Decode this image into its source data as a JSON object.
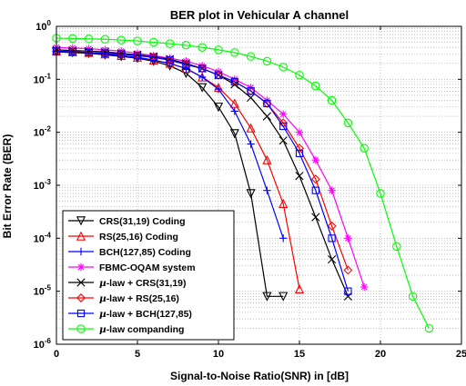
{
  "chart_data": {
    "type": "line",
    "title": "BER plot in Vehicular A channel",
    "xlabel": "Signal-to-Noise Ratio(SNR) in [dB]",
    "ylabel": "Bit Error Rate (BER)",
    "xlim": [
      0,
      25
    ],
    "ylim": [
      1e-06,
      1
    ],
    "yscale": "log",
    "grid": true,
    "legend_position": "lower-left",
    "x_ticks": [
      0,
      5,
      10,
      15,
      20,
      25
    ],
    "x_tick_labels": [
      "0",
      "5",
      "10",
      "15",
      "20",
      "25"
    ],
    "y_tick_exponents": [
      "0",
      "-1",
      "-2",
      "-3",
      "-4",
      "-5",
      "-6"
    ],
    "y_tick_base": "10",
    "series": [
      {
        "name": "CRS(31,19) Coding",
        "color": "#000000",
        "marker": "triangle-down",
        "x": [
          0,
          1,
          2,
          3,
          4,
          5,
          6,
          7,
          8,
          9,
          10,
          11,
          12,
          13,
          14
        ],
        "y": [
          0.33,
          0.32,
          0.31,
          0.29,
          0.27,
          0.25,
          0.22,
          0.18,
          0.13,
          0.07,
          0.03,
          0.0095,
          0.0007,
          8e-06,
          8e-06
        ]
      },
      {
        "name": "RS(25,16) Coding",
        "color": "#ff0000",
        "marker": "triangle-up",
        "x": [
          0,
          1,
          2,
          3,
          4,
          5,
          6,
          7,
          8,
          9,
          10,
          11,
          12,
          13,
          14,
          15
        ],
        "y": [
          0.34,
          0.33,
          0.32,
          0.3,
          0.28,
          0.26,
          0.23,
          0.2,
          0.16,
          0.11,
          0.07,
          0.035,
          0.012,
          0.003,
          0.00045,
          1.1e-05
        ]
      },
      {
        "name": "BCH(127,85) Coding",
        "color": "#0000ff",
        "marker": "plus",
        "x": [
          0,
          1,
          2,
          3,
          4,
          5,
          6,
          7,
          8,
          9,
          10,
          11,
          12,
          13,
          14
        ],
        "y": [
          0.34,
          0.33,
          0.32,
          0.3,
          0.28,
          0.26,
          0.23,
          0.2,
          0.16,
          0.11,
          0.065,
          0.025,
          0.006,
          0.0008,
          0.0001
        ]
      },
      {
        "name": "FBMC-OQAM system",
        "color": "#ff00ff",
        "marker": "asterisk",
        "x": [
          0,
          1,
          2,
          3,
          4,
          5,
          6,
          7,
          8,
          9,
          10,
          11,
          12,
          13,
          14,
          15,
          16,
          17,
          18,
          19
        ],
        "y": [
          0.4,
          0.39,
          0.38,
          0.36,
          0.34,
          0.31,
          0.28,
          0.25,
          0.22,
          0.18,
          0.14,
          0.1,
          0.07,
          0.04,
          0.022,
          0.01,
          0.003,
          0.0008,
          0.0001,
          1.2e-05
        ]
      },
      {
        "name": "µ-law + CRS(31,19)",
        "color": "#000000",
        "marker": "x",
        "x": [
          0,
          1,
          2,
          3,
          4,
          5,
          6,
          7,
          8,
          9,
          10,
          11,
          12,
          13,
          14,
          15,
          16,
          17,
          18
        ],
        "y": [
          0.36,
          0.35,
          0.34,
          0.33,
          0.31,
          0.29,
          0.27,
          0.24,
          0.2,
          0.16,
          0.12,
          0.08,
          0.045,
          0.02,
          0.007,
          0.0015,
          0.00025,
          4e-05,
          8e-06
        ]
      },
      {
        "name": "µ-law + RS(25,16)",
        "color": "#ff0000",
        "marker": "diamond",
        "x": [
          0,
          1,
          2,
          3,
          4,
          5,
          6,
          7,
          8,
          9,
          10,
          11,
          12,
          13,
          14,
          15,
          16,
          17,
          18
        ],
        "y": [
          0.34,
          0.33,
          0.32,
          0.31,
          0.3,
          0.28,
          0.26,
          0.23,
          0.19,
          0.16,
          0.12,
          0.09,
          0.06,
          0.035,
          0.015,
          0.005,
          0.0013,
          0.00017,
          2.5e-05
        ]
      },
      {
        "name": "µ-law + BCH(127,85)",
        "color": "#0000ff",
        "marker": "square",
        "x": [
          0,
          1,
          2,
          3,
          4,
          5,
          6,
          7,
          8,
          9,
          10,
          11,
          12,
          13,
          14,
          15,
          16,
          17,
          18
        ],
        "y": [
          0.34,
          0.33,
          0.32,
          0.31,
          0.3,
          0.28,
          0.26,
          0.23,
          0.19,
          0.16,
          0.12,
          0.09,
          0.06,
          0.035,
          0.013,
          0.004,
          0.0008,
          0.0001,
          1e-05
        ]
      },
      {
        "name": "µ-law companding",
        "color": "#00ff00",
        "marker": "circle",
        "x": [
          0,
          1,
          2,
          3,
          4,
          5,
          6,
          7,
          8,
          9,
          10,
          11,
          12,
          13,
          14,
          15,
          16,
          17,
          18,
          19,
          20,
          21,
          22,
          23
        ],
        "y": [
          0.6,
          0.59,
          0.58,
          0.57,
          0.55,
          0.53,
          0.5,
          0.47,
          0.44,
          0.4,
          0.36,
          0.32,
          0.27,
          0.22,
          0.17,
          0.12,
          0.075,
          0.04,
          0.015,
          0.005,
          0.0007,
          7e-05,
          8e-06,
          2e-06
        ]
      }
    ]
  }
}
